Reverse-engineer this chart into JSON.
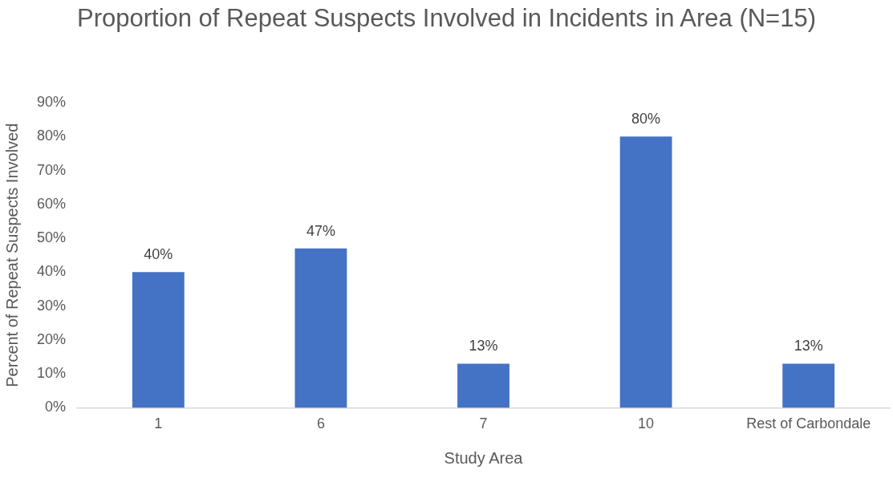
{
  "chart_data": {
    "type": "bar",
    "title": "Proportion of Repeat Suspects Involved in Incidents in Area (N=15)",
    "xlabel": "Study Area",
    "ylabel": "Percent of Repeat Suspects Involved",
    "categories": [
      "1",
      "6",
      "7",
      "10",
      "Rest of Carbondale"
    ],
    "values": [
      40,
      47,
      13,
      80,
      13
    ],
    "value_labels": [
      "40%",
      "47%",
      "13%",
      "80%",
      "13%"
    ],
    "color": "#4472c4",
    "ylim": [
      0,
      90
    ],
    "yticks": [
      {
        "value": 0,
        "label": "0%"
      },
      {
        "value": 10,
        "label": "10%"
      },
      {
        "value": 20,
        "label": "20%"
      },
      {
        "value": 30,
        "label": "30%"
      },
      {
        "value": 40,
        "label": "40%"
      },
      {
        "value": 50,
        "label": "50%"
      },
      {
        "value": 60,
        "label": "60%"
      },
      {
        "value": 70,
        "label": "70%"
      },
      {
        "value": 80,
        "label": "80%"
      },
      {
        "value": 90,
        "label": "90%"
      }
    ],
    "grid": false,
    "legend": false
  }
}
